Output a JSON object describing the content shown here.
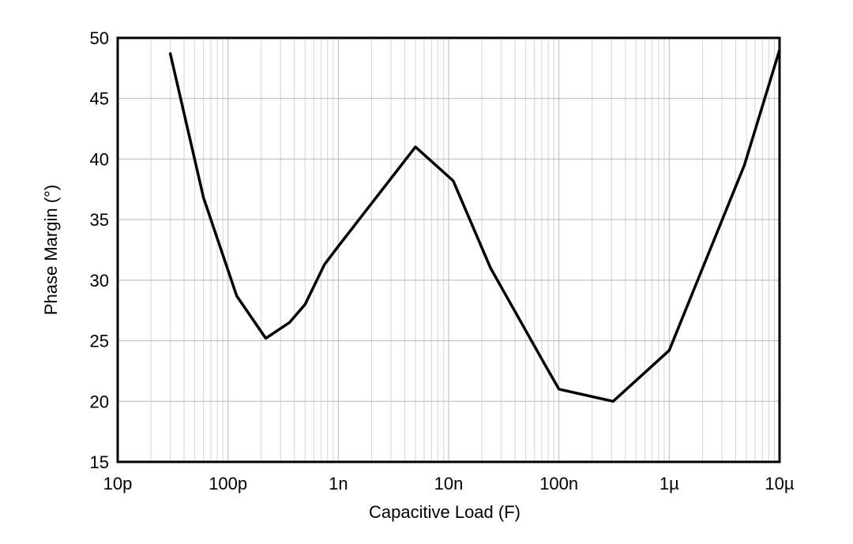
{
  "chart_data": {
    "type": "line",
    "title": "",
    "xlabel": "Capacitive Load (F)",
    "ylabel": "Phase Margin (°)",
    "xscale": "log",
    "xlim": [
      1e-11,
      1e-05
    ],
    "ylim": [
      15,
      50
    ],
    "grid": true,
    "x_tick_values": [
      1e-11,
      1e-10,
      1e-09,
      1e-08,
      1e-07,
      1e-06,
      1e-05
    ],
    "x_tick_labels": [
      "10p",
      "100p",
      "1n",
      "10n",
      "100n",
      "1µ",
      "10µ"
    ],
    "y_ticks": [
      15,
      20,
      25,
      30,
      35,
      40,
      45,
      50
    ],
    "series": [
      {
        "x": [
          3e-11,
          6e-11,
          1.2e-10,
          2.2e-10,
          3.6e-10,
          5e-10,
          7.5e-10,
          1e-09,
          5e-09,
          1.1e-08,
          2.4e-08,
          7.5e-08,
          1e-07,
          3.1e-07,
          1e-06,
          4.8e-06,
          1e-05
        ],
        "y": [
          48.7,
          36.8,
          28.7,
          25.2,
          26.5,
          28.0,
          31.3,
          32.8,
          41.0,
          38.2,
          31.0,
          23.0,
          21.0,
          20.0,
          24.2,
          39.5,
          49.0
        ]
      }
    ]
  }
}
